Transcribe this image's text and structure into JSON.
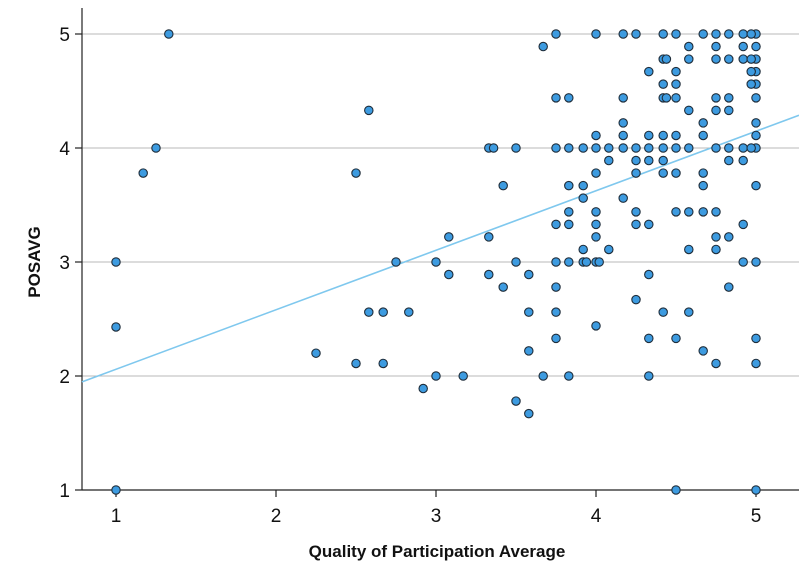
{
  "chart_data": {
    "type": "scatter",
    "title": "",
    "xlabel": "Quality of Participation Average",
    "ylabel": "POSAVG",
    "xlim": [
      0.8,
      5.2
    ],
    "ylim": [
      1,
      5.2
    ],
    "xticks": [
      1,
      2,
      3,
      4,
      5
    ],
    "yticks": [
      1,
      2,
      3,
      4,
      5
    ],
    "grid": "horizontal",
    "legend": "none",
    "colors": {
      "point_fill": "#3d9be0",
      "point_stroke": "#1f2d3a",
      "fit_line": "#7fc8ee",
      "grid": "#b8b8b8",
      "axis": "#222222",
      "background": "#ffffff"
    },
    "fit_line": {
      "intercept": 1.537,
      "slope": 0.522
    },
    "points": [
      [
        1,
        3
      ],
      [
        1,
        2.43
      ],
      [
        1,
        1
      ],
      [
        1.17,
        3.78
      ],
      [
        1.25,
        4
      ],
      [
        1.33,
        5
      ],
      [
        2.25,
        2.2
      ],
      [
        2.5,
        3.78
      ],
      [
        2.5,
        2.11
      ],
      [
        2.58,
        4.33
      ],
      [
        2.58,
        2.56
      ],
      [
        2.67,
        2.56
      ],
      [
        2.67,
        2.11
      ],
      [
        2.75,
        3
      ],
      [
        2.83,
        2.56
      ],
      [
        2.92,
        1.89
      ],
      [
        3,
        3
      ],
      [
        3,
        2
      ],
      [
        3.08,
        3.22
      ],
      [
        3.08,
        2.89
      ],
      [
        3.17,
        2
      ],
      [
        3.33,
        4
      ],
      [
        3.36,
        4
      ],
      [
        3.33,
        3.22
      ],
      [
        3.33,
        2.89
      ],
      [
        3.42,
        3.67
      ],
      [
        3.42,
        2.78
      ],
      [
        3.5,
        4
      ],
      [
        3.5,
        3
      ],
      [
        3.5,
        1.78
      ],
      [
        3.58,
        2.89
      ],
      [
        3.58,
        2.56
      ],
      [
        3.58,
        2.22
      ],
      [
        3.58,
        1.67
      ],
      [
        3.67,
        4.89
      ],
      [
        3.67,
        2
      ],
      [
        3.75,
        5
      ],
      [
        3.75,
        4.44
      ],
      [
        3.75,
        4
      ],
      [
        3.75,
        3.33
      ],
      [
        3.75,
        3
      ],
      [
        3.75,
        2.78
      ],
      [
        3.75,
        2.56
      ],
      [
        3.75,
        2.33
      ],
      [
        3.83,
        4.44
      ],
      [
        3.83,
        4
      ],
      [
        3.83,
        3.67
      ],
      [
        3.83,
        3.44
      ],
      [
        3.83,
        3.33
      ],
      [
        3.83,
        3
      ],
      [
        3.83,
        2
      ],
      [
        3.92,
        4
      ],
      [
        3.92,
        3.67
      ],
      [
        3.92,
        3.56
      ],
      [
        3.92,
        3.11
      ],
      [
        3.92,
        3
      ],
      [
        3.94,
        3
      ],
      [
        4,
        5
      ],
      [
        4,
        4.11
      ],
      [
        4,
        4
      ],
      [
        4,
        3.78
      ],
      [
        4,
        3.44
      ],
      [
        4,
        3.33
      ],
      [
        4,
        3.22
      ],
      [
        4,
        3
      ],
      [
        4,
        2.44
      ],
      [
        4.02,
        3
      ],
      [
        4.08,
        4
      ],
      [
        4.08,
        3.89
      ],
      [
        4.08,
        3.11
      ],
      [
        4.17,
        5
      ],
      [
        4.17,
        4.44
      ],
      [
        4.17,
        4.22
      ],
      [
        4.17,
        4.11
      ],
      [
        4.17,
        4
      ],
      [
        4.17,
        3.56
      ],
      [
        4.25,
        5
      ],
      [
        4.25,
        4
      ],
      [
        4.25,
        3.89
      ],
      [
        4.25,
        3.78
      ],
      [
        4.25,
        3.44
      ],
      [
        4.25,
        3.33
      ],
      [
        4.25,
        2.67
      ],
      [
        4.33,
        4.67
      ],
      [
        4.33,
        4.11
      ],
      [
        4.33,
        4
      ],
      [
        4.33,
        3.89
      ],
      [
        4.33,
        3.33
      ],
      [
        4.33,
        2.89
      ],
      [
        4.33,
        2.33
      ],
      [
        4.33,
        2
      ],
      [
        4.42,
        5
      ],
      [
        4.42,
        4.78
      ],
      [
        4.42,
        4.56
      ],
      [
        4.42,
        4.44
      ],
      [
        4.42,
        4.11
      ],
      [
        4.42,
        4
      ],
      [
        4.42,
        3.89
      ],
      [
        4.42,
        3.78
      ],
      [
        4.42,
        2.56
      ],
      [
        4.44,
        4.78
      ],
      [
        4.44,
        4.44
      ],
      [
        4.5,
        5
      ],
      [
        4.5,
        4.67
      ],
      [
        4.5,
        4.56
      ],
      [
        4.5,
        4.44
      ],
      [
        4.5,
        4.11
      ],
      [
        4.5,
        4
      ],
      [
        4.5,
        3.78
      ],
      [
        4.5,
        3.44
      ],
      [
        4.5,
        2.33
      ],
      [
        4.5,
        1
      ],
      [
        4.58,
        4.89
      ],
      [
        4.58,
        4.78
      ],
      [
        4.58,
        4.33
      ],
      [
        4.58,
        4
      ],
      [
        4.58,
        3.44
      ],
      [
        4.58,
        3.11
      ],
      [
        4.58,
        2.56
      ],
      [
        4.67,
        5
      ],
      [
        4.67,
        4.22
      ],
      [
        4.67,
        4.11
      ],
      [
        4.67,
        3.78
      ],
      [
        4.67,
        3.67
      ],
      [
        4.67,
        3.44
      ],
      [
        4.67,
        2.22
      ],
      [
        4.75,
        5
      ],
      [
        4.75,
        4.89
      ],
      [
        4.75,
        4.78
      ],
      [
        4.75,
        4.44
      ],
      [
        4.75,
        4.33
      ],
      [
        4.75,
        4
      ],
      [
        4.75,
        3.44
      ],
      [
        4.75,
        3.22
      ],
      [
        4.75,
        3.11
      ],
      [
        4.75,
        2.11
      ],
      [
        4.83,
        5
      ],
      [
        4.83,
        4.78
      ],
      [
        4.83,
        4.44
      ],
      [
        4.83,
        4.33
      ],
      [
        4.83,
        4
      ],
      [
        4.83,
        3.89
      ],
      [
        4.83,
        3.22
      ],
      [
        4.83,
        2.78
      ],
      [
        4.92,
        5
      ],
      [
        4.92,
        4.89
      ],
      [
        4.92,
        4.78
      ],
      [
        4.92,
        4
      ],
      [
        4.92,
        3.89
      ],
      [
        4.92,
        3.33
      ],
      [
        4.92,
        3
      ],
      [
        5,
        5
      ],
      [
        5,
        4.89
      ],
      [
        5,
        4.78
      ],
      [
        5,
        4.67
      ],
      [
        5,
        4.56
      ],
      [
        5,
        4.44
      ],
      [
        5,
        4.22
      ],
      [
        5,
        4.11
      ],
      [
        5,
        4
      ],
      [
        5,
        3.67
      ],
      [
        5,
        3
      ],
      [
        5,
        2.33
      ],
      [
        5,
        2.11
      ],
      [
        5,
        1
      ],
      [
        4.97,
        4.67
      ],
      [
        4.97,
        4.56
      ],
      [
        4.97,
        4.78
      ],
      [
        4.97,
        4
      ],
      [
        4.97,
        5
      ]
    ]
  }
}
